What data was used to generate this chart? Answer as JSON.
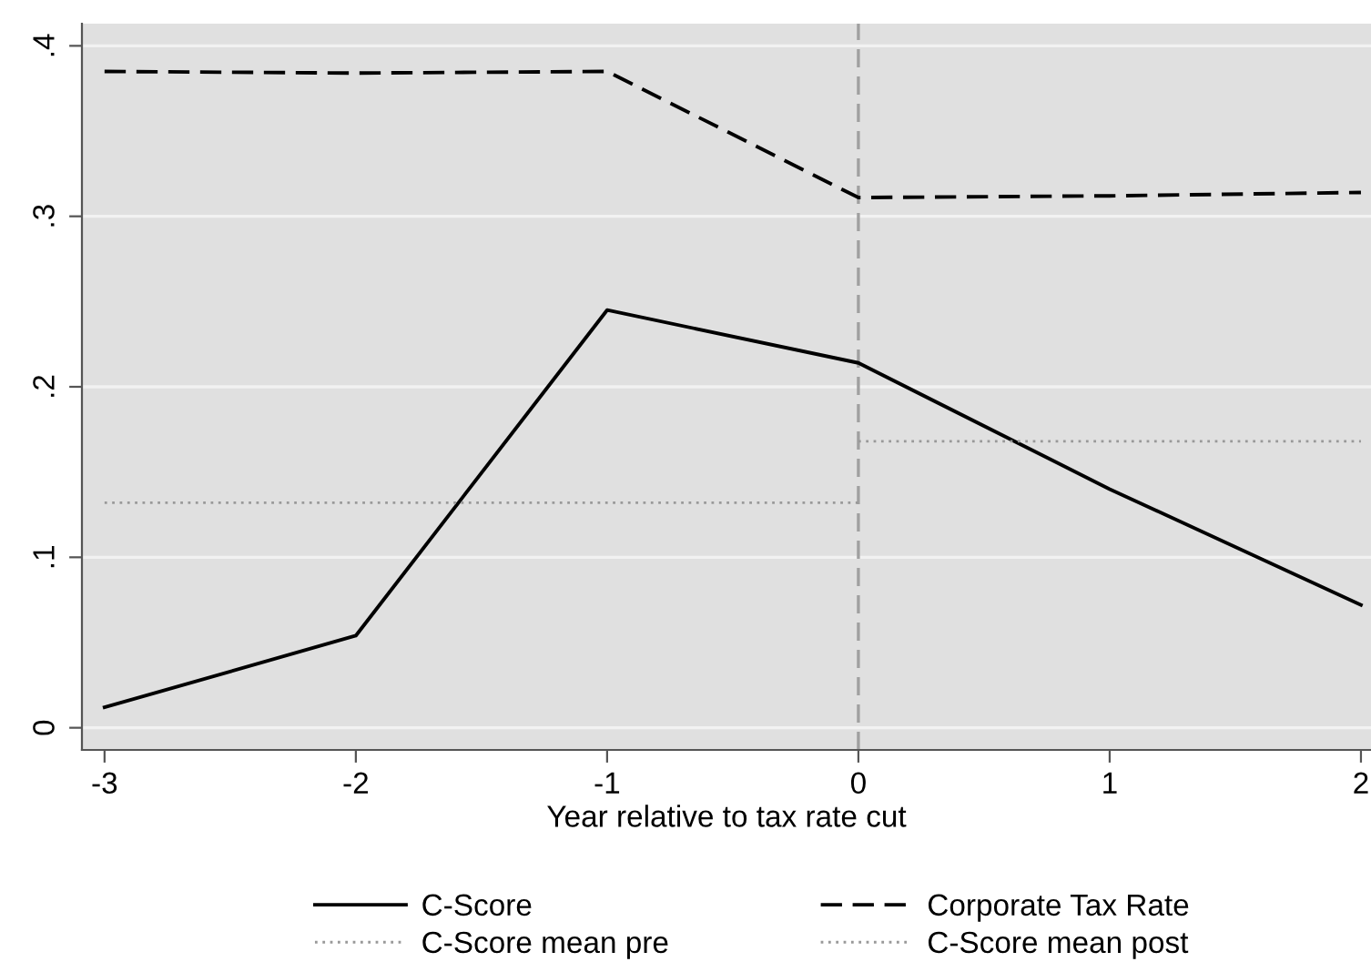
{
  "chart_data": {
    "type": "line",
    "xlabel": "Year relative to tax rate cut",
    "x": [
      -3,
      -2,
      -1,
      0,
      1,
      2
    ],
    "series": [
      {
        "name": "C-Score",
        "color": "#000000",
        "line_style": "solid",
        "values": [
          0.012,
          0.054,
          0.245,
          0.214,
          0.14,
          0.072
        ]
      },
      {
        "name": "Corporate Tax Rate",
        "color": "#000000",
        "line_style": "dashed",
        "values": [
          0.385,
          0.384,
          0.385,
          0.311,
          0.312,
          0.314
        ]
      },
      {
        "name": "C-Score mean pre",
        "color": "#999999",
        "line_style": "dotted",
        "x": [
          -3,
          0
        ],
        "values": [
          0.132,
          0.132
        ]
      },
      {
        "name": "C-Score mean post",
        "color": "#999999",
        "line_style": "dotted",
        "x": [
          0,
          2
        ],
        "values": [
          0.168,
          0.168
        ]
      }
    ],
    "xlim": [
      -3.09,
      2.04
    ],
    "ylim": [
      -0.013,
      0.413
    ],
    "xticks": [
      -3,
      -2,
      -1,
      0,
      1,
      2
    ],
    "yticks": [
      0,
      {
        "value": 0.1,
        "label": ".1"
      },
      {
        "value": 0.2,
        "label": ".2"
      },
      {
        "value": 0.3,
        "label": ".3"
      },
      {
        "value": 0.4,
        "label": ".4"
      }
    ],
    "ref_lines": [
      {
        "axis": "x",
        "value": 0,
        "color": "#a0a0a0",
        "line_style": "dashed"
      }
    ],
    "grid": "y",
    "legend": "bottom",
    "marker": "none"
  }
}
